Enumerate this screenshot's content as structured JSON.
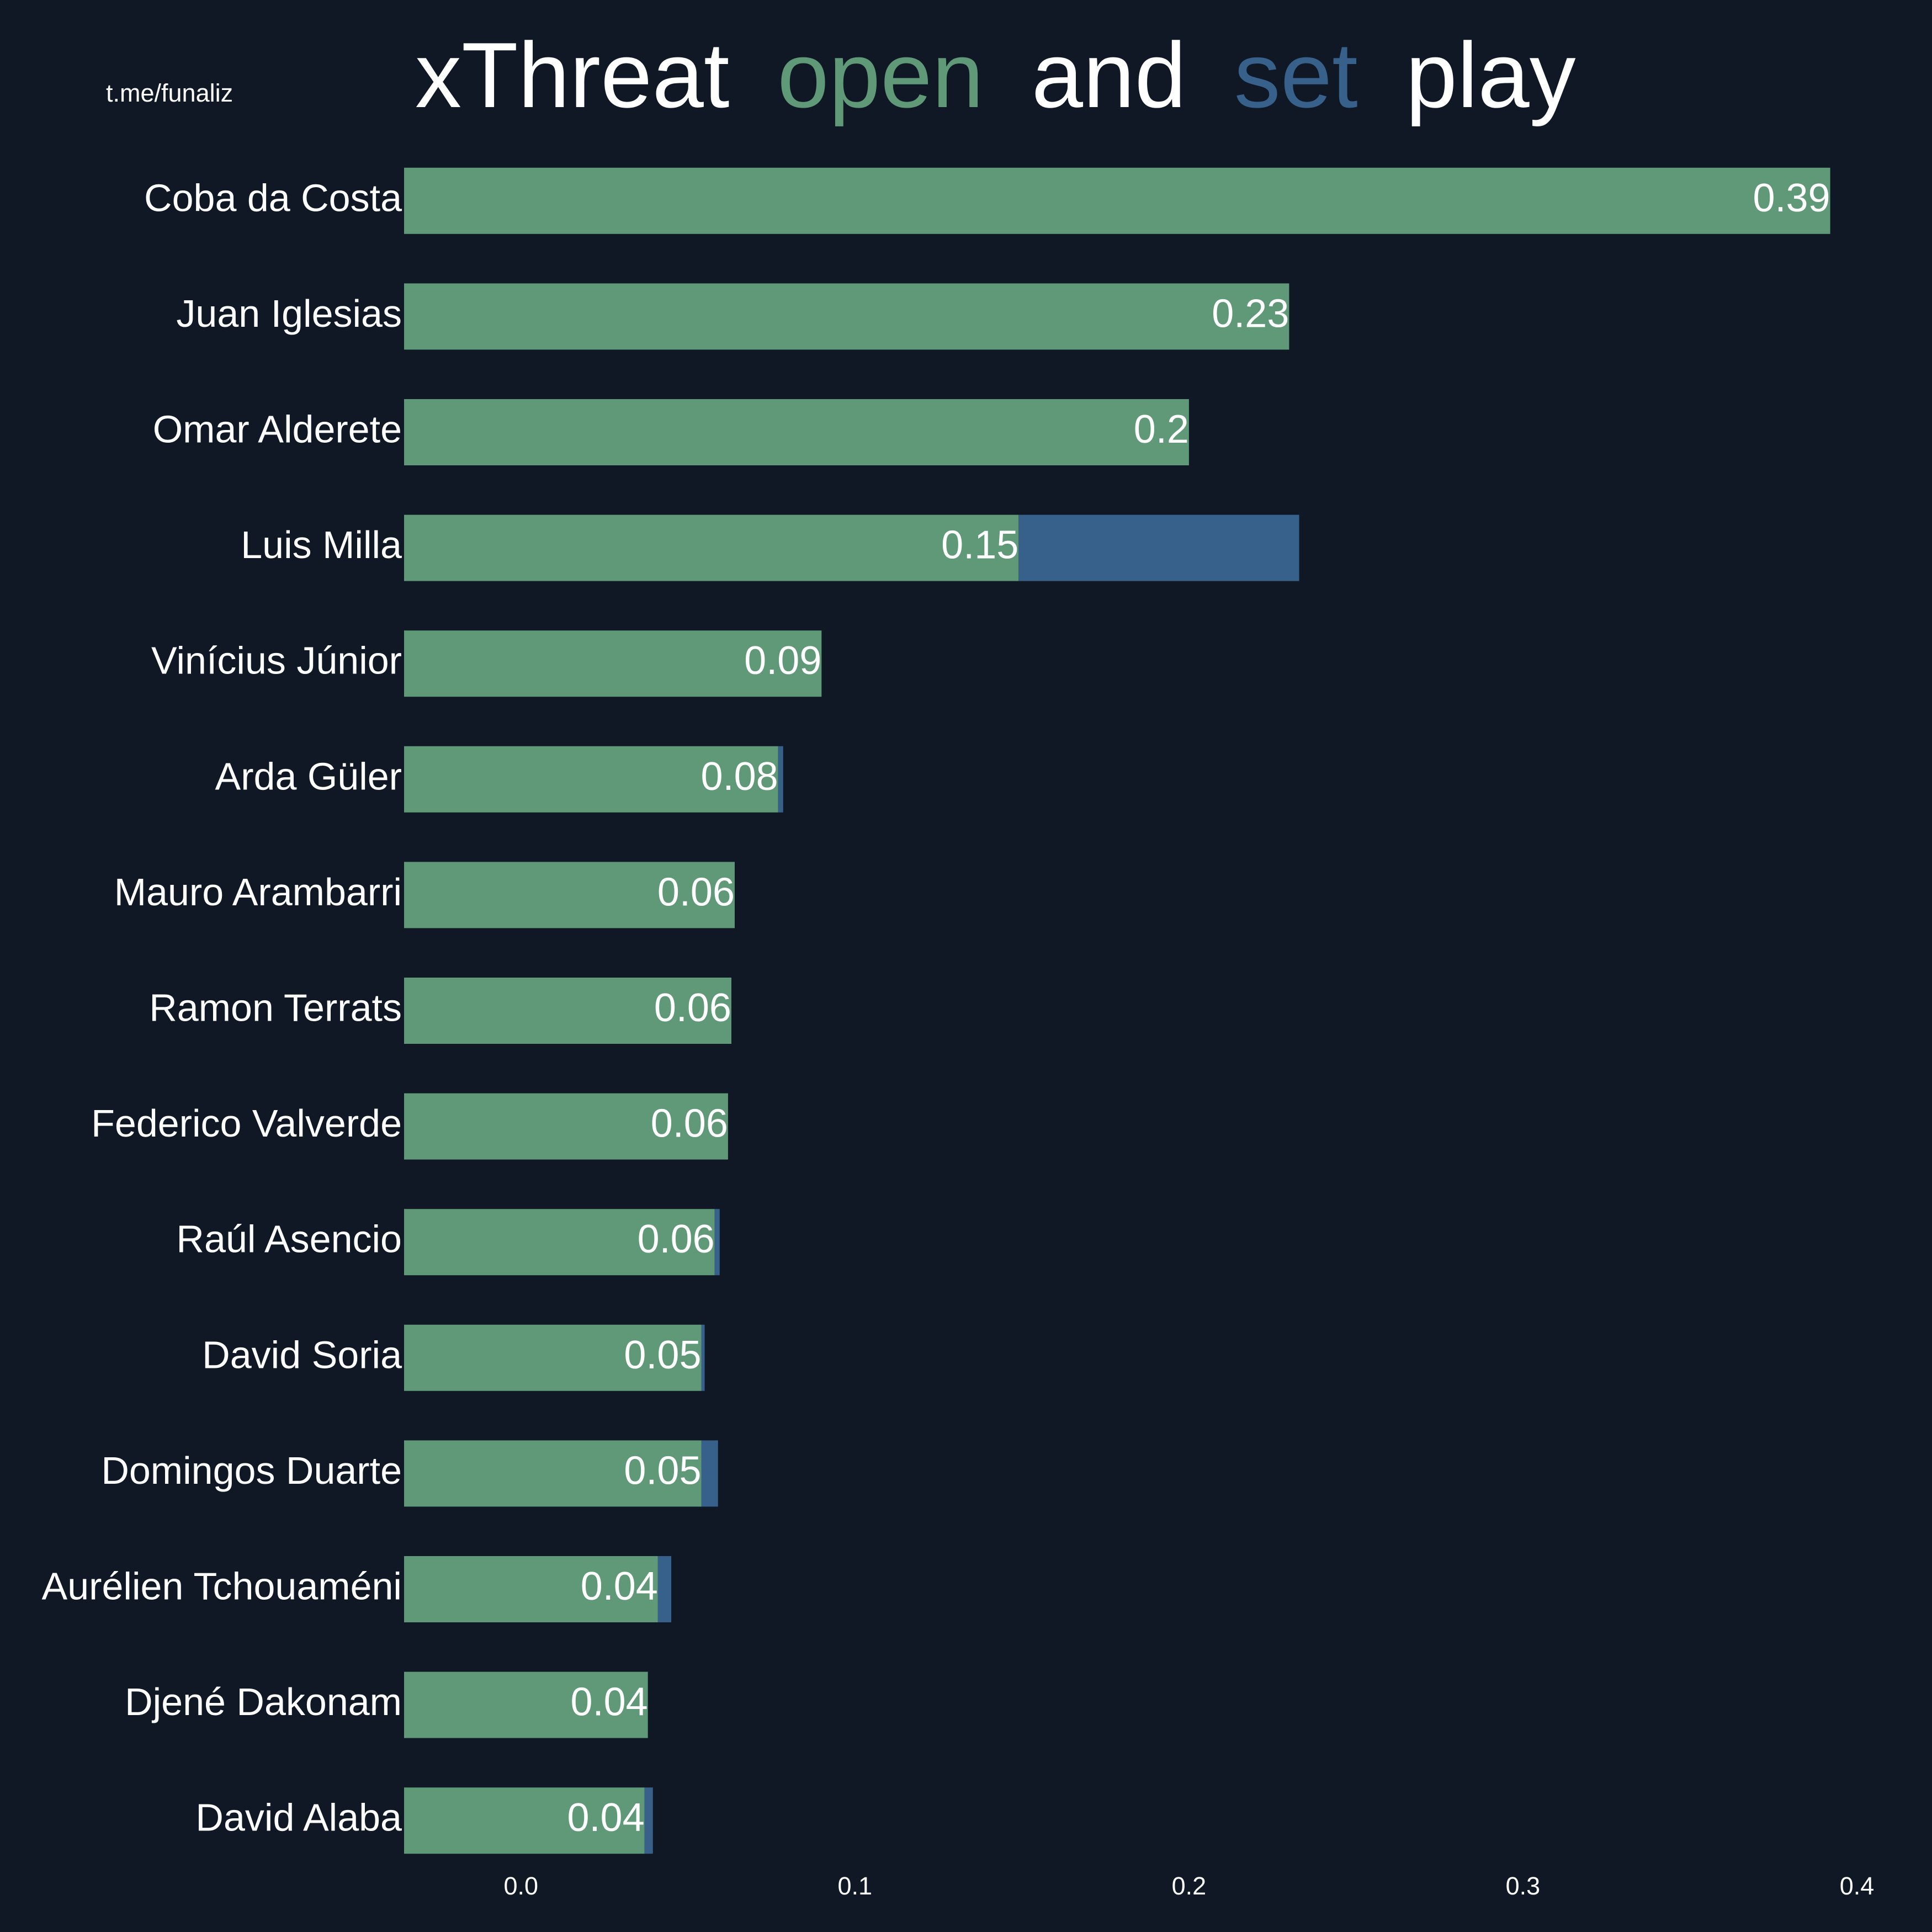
{
  "chart_data": {
    "type": "bar",
    "orientation": "horizontal",
    "stacked": true,
    "watermark": "t.me/funaliz",
    "title_parts": [
      "xThreat",
      "and",
      "play"
    ],
    "categories": [
      "Coba da Costa",
      "Juan Iglesias",
      "Omar Alderete",
      "Luis Milla",
      "Vinícius Júnior",
      "Arda Güler",
      "Mauro Arambarri",
      "Ramon Terrats",
      "Federico Valverde",
      "Raúl Asencio",
      "David Soria",
      "Domingos Duarte",
      "Aurélien Tchouaméni",
      "Djené Dakonam",
      "David Alaba"
    ],
    "series": [
      {
        "name": "open",
        "color": "#5f9977",
        "values": [
          0.392,
          0.23,
          0.2,
          0.149,
          0.09,
          0.077,
          0.064,
          0.063,
          0.062,
          0.058,
          0.054,
          0.054,
          0.041,
          0.038,
          0.037
        ],
        "value_labels": [
          "0.39",
          "0.23",
          "0.2",
          "0.15",
          "0.09",
          "0.08",
          "0.06",
          "0.06",
          "0.06",
          "0.06",
          "0.05",
          "0.05",
          "0.04",
          "0.04",
          "0.04"
        ]
      },
      {
        "name": "set",
        "color": "#37618a",
        "values": [
          0,
          0,
          0,
          0.084,
          0,
          0.0015,
          0,
          0,
          0,
          0.0015,
          0.001,
          0.005,
          0.004,
          0,
          0.0025
        ]
      }
    ],
    "xlim": [
      -0.035,
      0.4
    ],
    "xticks": [
      {
        "value": 0,
        "label": "0.0"
      },
      0.1,
      0.2,
      0.3,
      0.4
    ],
    "title_color": "#ffffff",
    "background": "#0f1824"
  }
}
